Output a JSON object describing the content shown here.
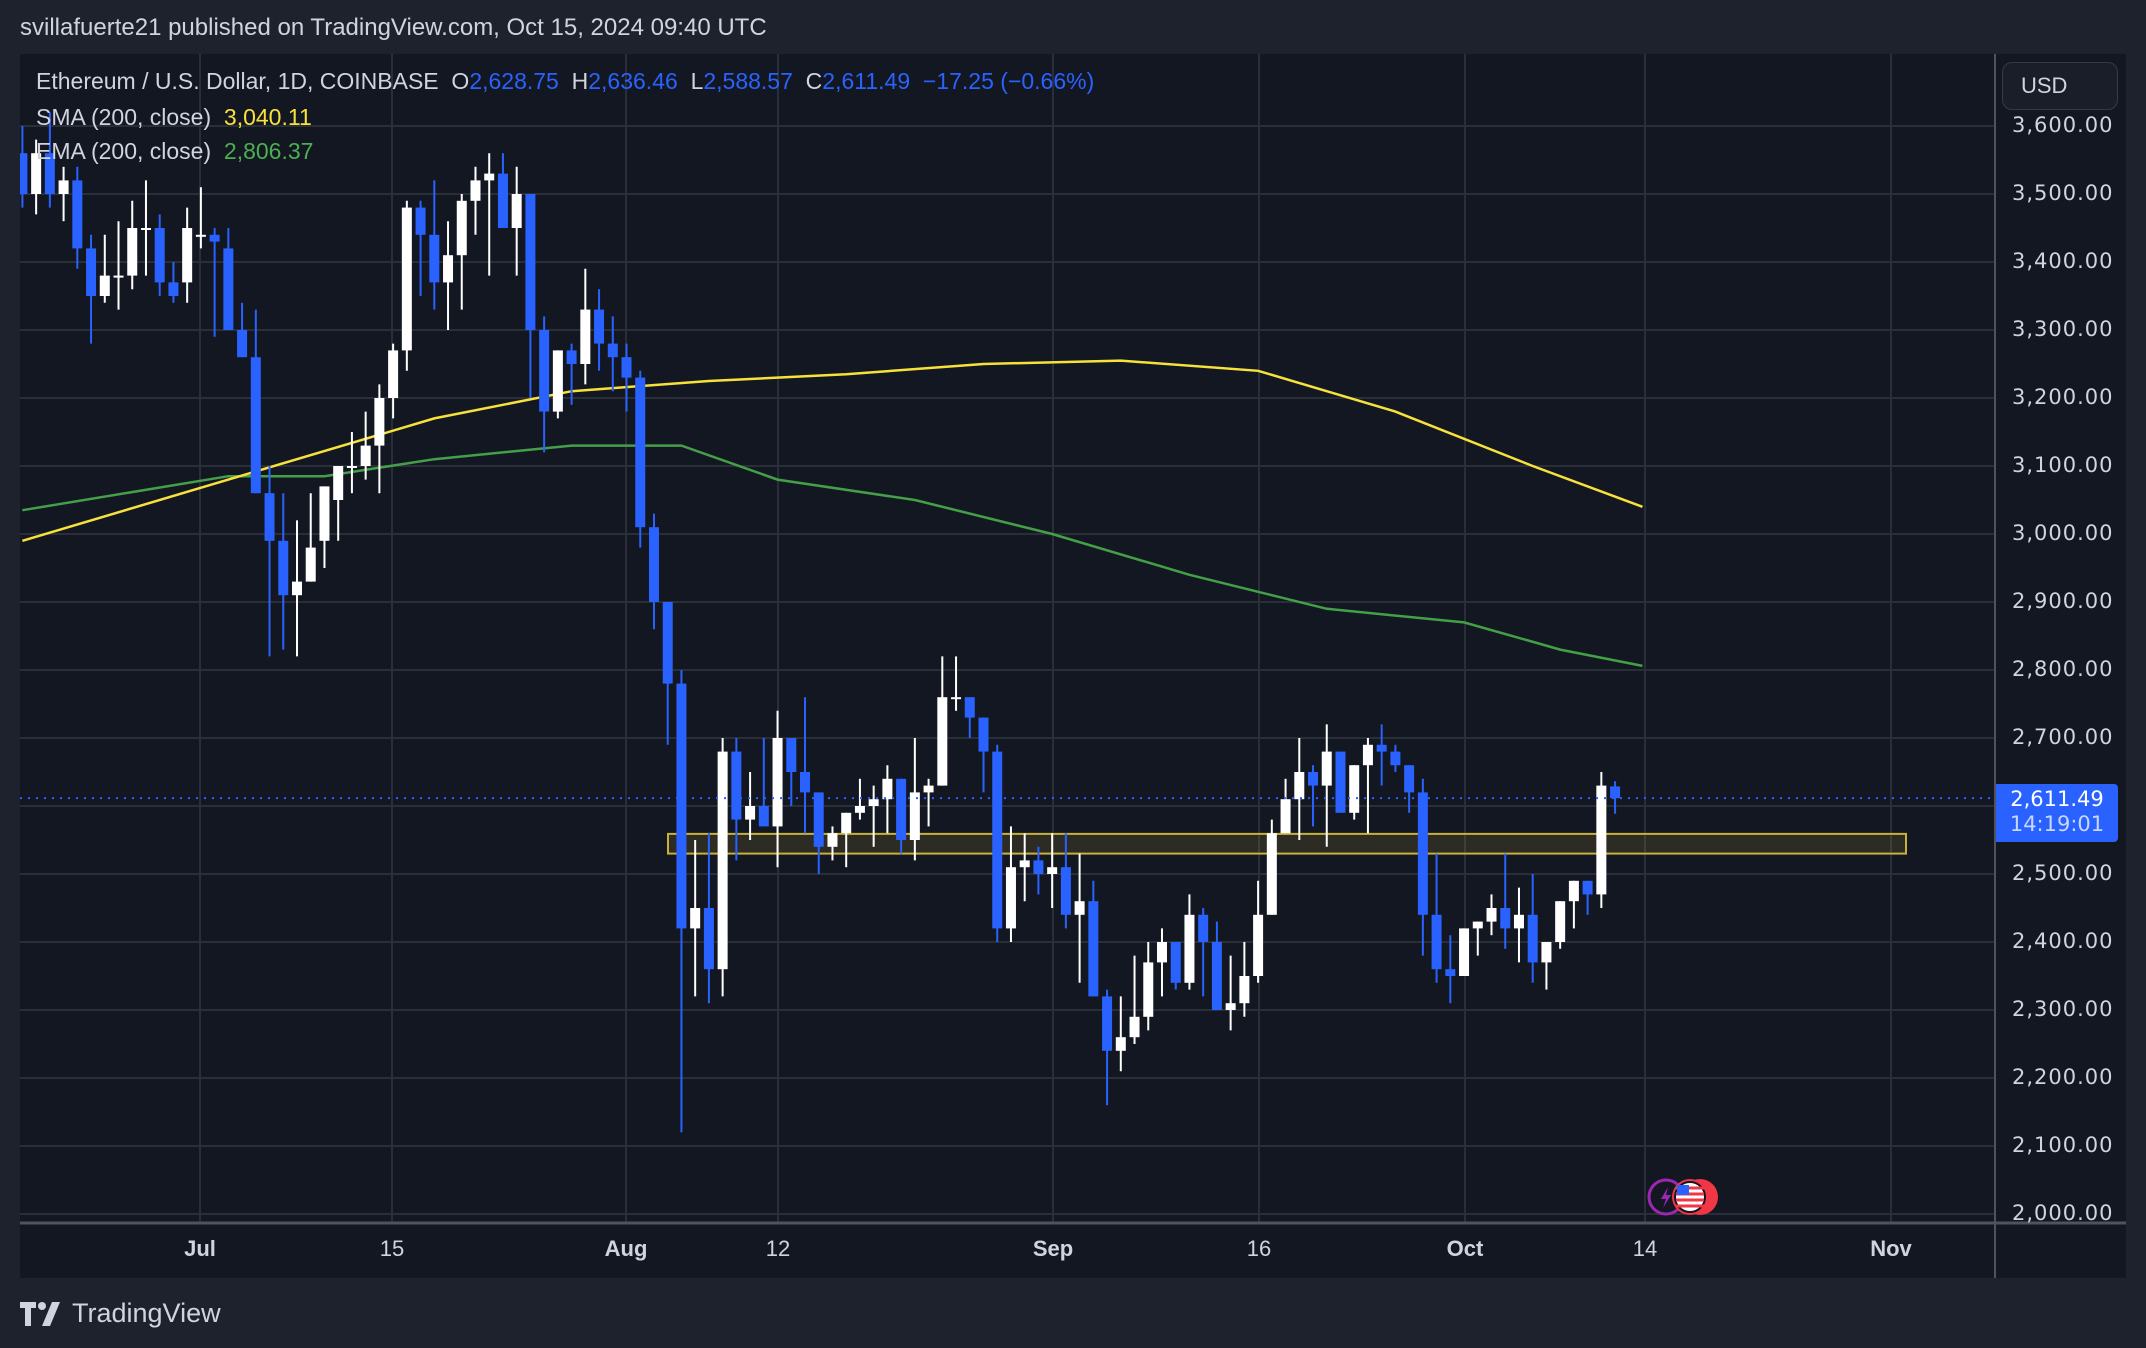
{
  "header": {
    "publisher_line": "svillafuerte21 published on TradingView.com, Oct 15, 2024 09:40 UTC"
  },
  "legend": {
    "symbol": "Ethereum / U.S. Dollar, 1D, COINBASE",
    "open_label": "O",
    "open": "2,628.75",
    "high_label": "H",
    "high": "2,636.46",
    "low_label": "L",
    "low": "2,588.57",
    "close_label": "C",
    "close": "2,611.49",
    "change": "−17.25 (−0.66%)",
    "sma_label": "SMA (200, close)",
    "sma_value": "3,040.11",
    "ema_label": "EMA (200, close)",
    "ema_value": "2,806.37"
  },
  "price_axis": {
    "currency_button": "USD",
    "ticks": [
      "3,600.00",
      "3,500.00",
      "3,400.00",
      "3,300.00",
      "3,200.00",
      "3,100.00",
      "3,000.00",
      "2,900.00",
      "2,800.00",
      "2,700.00",
      "2,500.00",
      "2,400.00",
      "2,300.00",
      "2,200.00",
      "2,100.00",
      "2,000.00"
    ],
    "last_price": "2,611.49",
    "countdown": "14:19:01"
  },
  "time_axis": {
    "ticks": [
      {
        "label": "Jul",
        "bold": true
      },
      {
        "label": "15",
        "bold": false
      },
      {
        "label": "Aug",
        "bold": true
      },
      {
        "label": "12",
        "bold": false
      },
      {
        "label": "Sep",
        "bold": true
      },
      {
        "label": "16",
        "bold": false
      },
      {
        "label": "Oct",
        "bold": true
      },
      {
        "label": "14",
        "bold": false
      },
      {
        "label": "Nov",
        "bold": true
      }
    ]
  },
  "footer": {
    "brand": "TradingView"
  },
  "colors": {
    "background": "#131722",
    "outer": "#1e222d",
    "grid": "#2a2e39",
    "up_candle": "#ffffff",
    "down_candle": "#2962ff",
    "sma": "#f7e13b",
    "ema": "#43a047",
    "support_zone": "#c9b03a"
  },
  "chart_data": {
    "type": "candlestick",
    "title": "Ethereum / U.S. Dollar, 1D, COINBASE",
    "xlabel": "",
    "ylabel": "USD",
    "ylim": [
      2000,
      3620
    ],
    "grid": true,
    "x_ticks": [
      "Jul",
      "15",
      "Aug",
      "12",
      "Sep",
      "16",
      "Oct",
      "14",
      "Nov"
    ],
    "y_ticks": [
      2000,
      2100,
      2200,
      2300,
      2400,
      2500,
      2600,
      2700,
      2800,
      2900,
      3000,
      3100,
      3200,
      3300,
      3400,
      3500,
      3600
    ],
    "first_date": "2024-06-19",
    "ohlc": [
      [
        3560,
        3600,
        3480,
        3500
      ],
      [
        3500,
        3580,
        3470,
        3560
      ],
      [
        3560,
        3620,
        3480,
        3500
      ],
      [
        3500,
        3540,
        3460,
        3520
      ],
      [
        3520,
        3540,
        3390,
        3420
      ],
      [
        3420,
        3440,
        3280,
        3350
      ],
      [
        3350,
        3440,
        3340,
        3380
      ],
      [
        3380,
        3460,
        3330,
        3380
      ],
      [
        3380,
        3490,
        3360,
        3450
      ],
      [
        3450,
        3520,
        3380,
        3450
      ],
      [
        3450,
        3470,
        3350,
        3370
      ],
      [
        3370,
        3400,
        3340,
        3350
      ],
      [
        3370,
        3480,
        3340,
        3450
      ],
      [
        3440,
        3510,
        3420,
        3440
      ],
      [
        3440,
        3450,
        3290,
        3430
      ],
      [
        3420,
        3450,
        3310,
        3300
      ],
      [
        3300,
        3340,
        3260,
        3260
      ],
      [
        3260,
        3330,
        3170,
        3060
      ],
      [
        3060,
        3100,
        2820,
        2990
      ],
      [
        2990,
        3060,
        2830,
        2910
      ],
      [
        2910,
        3020,
        2820,
        2930
      ],
      [
        2930,
        3060,
        2960,
        2980
      ],
      [
        2990,
        3030,
        2950,
        3070
      ],
      [
        3050,
        3100,
        2990,
        3100
      ],
      [
        3100,
        3150,
        3060,
        3100
      ],
      [
        3100,
        3180,
        3080,
        3130
      ],
      [
        3130,
        3220,
        3060,
        3200
      ],
      [
        3200,
        3280,
        3170,
        3270
      ],
      [
        3270,
        3490,
        3240,
        3480
      ],
      [
        3480,
        3490,
        3350,
        3440
      ],
      [
        3440,
        3520,
        3330,
        3370
      ],
      [
        3370,
        3460,
        3300,
        3410
      ],
      [
        3410,
        3500,
        3330,
        3490
      ],
      [
        3490,
        3540,
        3440,
        3520
      ],
      [
        3520,
        3560,
        3380,
        3530
      ],
      [
        3530,
        3560,
        3450,
        3450
      ],
      [
        3450,
        3540,
        3380,
        3500
      ],
      [
        3500,
        3500,
        3200,
        3300
      ],
      [
        3300,
        3320,
        3120,
        3180
      ],
      [
        3180,
        3240,
        3170,
        3270
      ],
      [
        3270,
        3280,
        3190,
        3250
      ],
      [
        3250,
        3390,
        3220,
        3330
      ],
      [
        3330,
        3360,
        3240,
        3280
      ],
      [
        3280,
        3320,
        3210,
        3260
      ],
      [
        3260,
        3280,
        3180,
        3230
      ],
      [
        3230,
        3240,
        2980,
        3010
      ],
      [
        3010,
        3030,
        2860,
        2900
      ],
      [
        2900,
        2900,
        2690,
        2780
      ],
      [
        2780,
        2800,
        2120,
        2420
      ],
      [
        2420,
        2550,
        2320,
        2450
      ],
      [
        2450,
        2560,
        2310,
        2360
      ],
      [
        2360,
        2700,
        2320,
        2680
      ],
      [
        2680,
        2700,
        2520,
        2580
      ],
      [
        2580,
        2650,
        2550,
        2600
      ],
      [
        2600,
        2700,
        2580,
        2570
      ],
      [
        2570,
        2740,
        2510,
        2700
      ],
      [
        2700,
        2690,
        2600,
        2650
      ],
      [
        2650,
        2760,
        2560,
        2620
      ],
      [
        2620,
        2620,
        2500,
        2540
      ],
      [
        2540,
        2570,
        2520,
        2560
      ],
      [
        2560,
        2590,
        2510,
        2590
      ],
      [
        2590,
        2640,
        2580,
        2600
      ],
      [
        2600,
        2630,
        2540,
        2610
      ],
      [
        2610,
        2660,
        2560,
        2640
      ],
      [
        2640,
        2630,
        2530,
        2550
      ],
      [
        2550,
        2700,
        2520,
        2620
      ],
      [
        2620,
        2640,
        2570,
        2630
      ],
      [
        2630,
        2820,
        2640,
        2760
      ],
      [
        2760,
        2820,
        2740,
        2760
      ],
      [
        2760,
        2740,
        2700,
        2730
      ],
      [
        2730,
        2720,
        2620,
        2680
      ],
      [
        2680,
        2690,
        2400,
        2420
      ],
      [
        2420,
        2570,
        2400,
        2510
      ],
      [
        2510,
        2560,
        2460,
        2520
      ],
      [
        2520,
        2540,
        2470,
        2500
      ],
      [
        2500,
        2560,
        2450,
        2510
      ],
      [
        2510,
        2560,
        2420,
        2440
      ],
      [
        2440,
        2530,
        2340,
        2460
      ],
      [
        2460,
        2490,
        2400,
        2320
      ],
      [
        2320,
        2330,
        2160,
        2240
      ],
      [
        2240,
        2320,
        2210,
        2260
      ],
      [
        2260,
        2380,
        2250,
        2290
      ],
      [
        2290,
        2400,
        2270,
        2370
      ],
      [
        2370,
        2420,
        2320,
        2400
      ],
      [
        2400,
        2400,
        2330,
        2340
      ],
      [
        2340,
        2470,
        2330,
        2440
      ],
      [
        2440,
        2450,
        2320,
        2400
      ],
      [
        2400,
        2430,
        2330,
        2300
      ],
      [
        2300,
        2380,
        2270,
        2310
      ],
      [
        2310,
        2400,
        2290,
        2350
      ],
      [
        2350,
        2490,
        2340,
        2440
      ],
      [
        2440,
        2580,
        2480,
        2560
      ],
      [
        2560,
        2640,
        2560,
        2610
      ],
      [
        2610,
        2700,
        2550,
        2650
      ],
      [
        2650,
        2660,
        2570,
        2630
      ],
      [
        2630,
        2720,
        2540,
        2680
      ],
      [
        2680,
        2680,
        2600,
        2590
      ],
      [
        2590,
        2660,
        2580,
        2660
      ],
      [
        2660,
        2700,
        2560,
        2690
      ],
      [
        2690,
        2720,
        2630,
        2680
      ],
      [
        2680,
        2690,
        2650,
        2660
      ],
      [
        2660,
        2650,
        2590,
        2620
      ],
      [
        2620,
        2640,
        2380,
        2440
      ],
      [
        2440,
        2530,
        2340,
        2360
      ],
      [
        2360,
        2410,
        2310,
        2350
      ],
      [
        2350,
        2420,
        2360,
        2420
      ],
      [
        2420,
        2430,
        2380,
        2430
      ],
      [
        2430,
        2470,
        2410,
        2450
      ],
      [
        2450,
        2530,
        2390,
        2420
      ],
      [
        2420,
        2480,
        2370,
        2440
      ],
      [
        2440,
        2500,
        2340,
        2370
      ],
      [
        2370,
        2400,
        2330,
        2400
      ],
      [
        2400,
        2450,
        2390,
        2460
      ],
      [
        2460,
        2490,
        2420,
        2490
      ],
      [
        2490,
        2490,
        2440,
        2470
      ],
      [
        2470,
        2650,
        2450,
        2630
      ],
      [
        2628.75,
        2636.46,
        2588.57,
        2611.49
      ]
    ],
    "sma_200": {
      "label": "SMA (200, close)",
      "last": 3040.11,
      "points": [
        [
          0,
          2990
        ],
        [
          15,
          3080
        ],
        [
          30,
          3170
        ],
        [
          40,
          3210
        ],
        [
          50,
          3225
        ],
        [
          60,
          3235
        ],
        [
          70,
          3250
        ],
        [
          80,
          3255
        ],
        [
          90,
          3240
        ],
        [
          100,
          3180
        ],
        [
          110,
          3100
        ],
        [
          118,
          3040
        ]
      ]
    },
    "ema_200": {
      "label": "EMA (200, close)",
      "last": 2806.37,
      "points": [
        [
          0,
          3035
        ],
        [
          15,
          3085
        ],
        [
          22,
          3085
        ],
        [
          30,
          3110
        ],
        [
          40,
          3130
        ],
        [
          48,
          3130
        ],
        [
          55,
          3080
        ],
        [
          65,
          3050
        ],
        [
          75,
          3000
        ],
        [
          85,
          2940
        ],
        [
          95,
          2890
        ],
        [
          105,
          2870
        ],
        [
          112,
          2830
        ],
        [
          118,
          2806
        ]
      ]
    },
    "support_zone": {
      "from_index": 47,
      "to_index": 138,
      "low": 2530,
      "high": 2559
    },
    "last_price_line": 2611.49
  }
}
